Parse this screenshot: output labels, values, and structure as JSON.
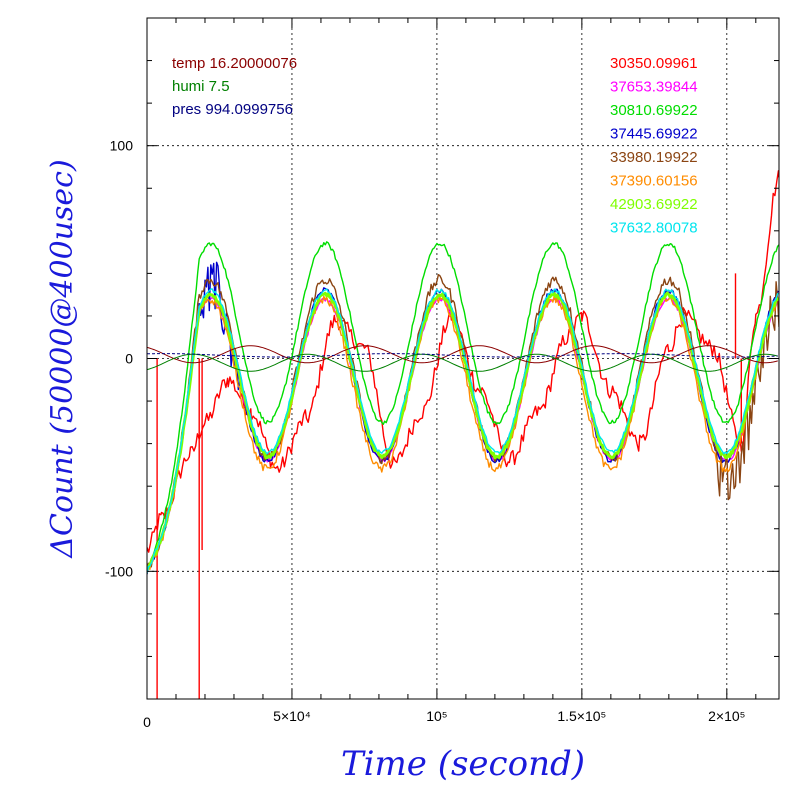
{
  "chart_data": {
    "type": "line",
    "xlabel": "Time (second)",
    "ylabel": "ΔCount (50000@400usec)",
    "xlim": [
      0,
      218000
    ],
    "ylim": [
      -160,
      160
    ],
    "x_ticks": [
      {
        "value": 0,
        "label": "0"
      },
      {
        "value": 50000,
        "label": "5×10⁴"
      },
      {
        "value": 100000,
        "label": "10⁵"
      },
      {
        "value": 150000,
        "label": "1.5×10⁵"
      },
      {
        "value": 200000,
        "label": "2×10⁵"
      }
    ],
    "y_ticks": [
      {
        "value": 100,
        "label": "100"
      },
      {
        "value": 0,
        "label": "0"
      },
      {
        "value": -100,
        "label": "-100"
      }
    ],
    "grid": "dotted at major ticks",
    "env_legend": [
      {
        "label": "temp 16.20000076",
        "color": "#8b0000"
      },
      {
        "label": "humi 7.5",
        "color": "#008000"
      },
      {
        "label": "pres 994.0999756",
        "color": "#000080"
      }
    ],
    "series": [
      {
        "name": "30350.09961",
        "color": "#ff0000",
        "amp": 20,
        "offset": -15,
        "phase": 0.1,
        "noise": 4,
        "points": [
          [
            0,
            -90
          ],
          [
            5000,
            -75
          ],
          [
            15000,
            -45
          ],
          [
            20000,
            -30
          ],
          [
            28000,
            -10
          ],
          [
            36000,
            -25
          ],
          [
            45000,
            -52
          ],
          [
            55000,
            -28
          ],
          [
            65000,
            18
          ],
          [
            75000,
            5
          ],
          [
            85000,
            -50
          ],
          [
            95000,
            -25
          ],
          [
            105000,
            20
          ],
          [
            115000,
            -15
          ],
          [
            125000,
            -48
          ],
          [
            135000,
            -25
          ],
          [
            145000,
            10
          ],
          [
            150000,
            20
          ],
          [
            160000,
            -15
          ],
          [
            170000,
            -40
          ],
          [
            180000,
            5
          ],
          [
            185000,
            20
          ],
          [
            195000,
            5
          ],
          [
            205000,
            -40
          ],
          [
            210000,
            20
          ],
          [
            218000,
            85
          ]
        ]
      },
      {
        "name": "37653.39844",
        "color": "#ff00ff",
        "amp": 38,
        "offset": -10,
        "phase": 0.0,
        "noise": 1
      },
      {
        "name": "30810.69922",
        "color": "#00dd00",
        "amp": 42,
        "offset": 12,
        "phase": 0.0,
        "noise": 1
      },
      {
        "name": "37445.69922",
        "color": "#0000cc",
        "amp": 40,
        "offset": -8,
        "phase": 0.02,
        "noise": 1.5
      },
      {
        "name": "33980.19922",
        "color": "#8b4513",
        "amp": 42,
        "offset": -5,
        "phase": 0.0,
        "noise": 2.5
      },
      {
        "name": "37390.60156",
        "color": "#ff8c00",
        "amp": 40,
        "offset": -12,
        "phase": 0.05,
        "noise": 2
      },
      {
        "name": "42903.69922",
        "color": "#7fff00",
        "amp": 38,
        "offset": -8,
        "phase": 0.0,
        "noise": 1
      },
      {
        "name": "37632.80078",
        "color": "#00e5ee",
        "amp": 38,
        "offset": -6,
        "phase": 0.0,
        "noise": 1
      }
    ],
    "period": 39500,
    "x_offset": 6000
  },
  "colors": {
    "axis_title": "#1a1adb",
    "grid": "#000000"
  }
}
